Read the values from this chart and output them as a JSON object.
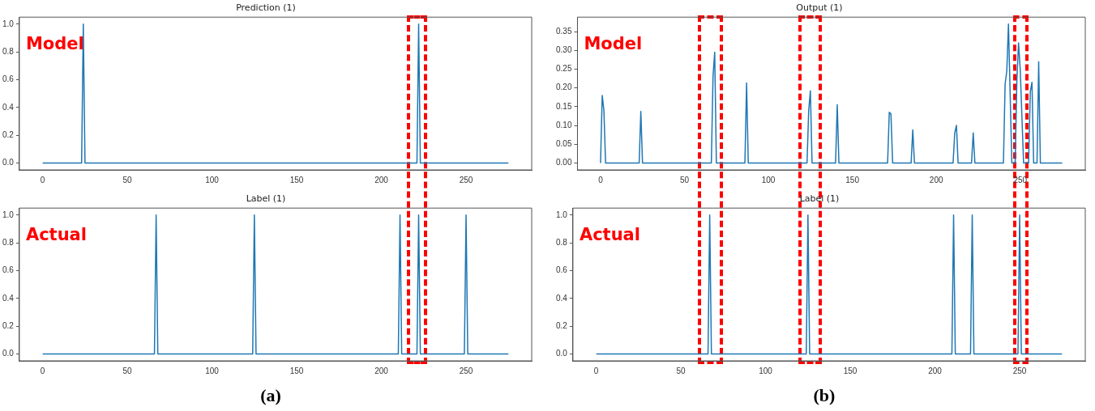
{
  "chart_data": [
    {
      "type": "line",
      "title": "Prediction (1)",
      "annotations": [
        "Model"
      ],
      "x": [
        0,
        23,
        24,
        25,
        221,
        222,
        223,
        275
      ],
      "series": [
        {
          "color": "#1f77b4",
          "values": [
            0,
            0,
            1,
            0,
            0,
            1,
            0,
            0
          ]
        }
      ],
      "xlim": [
        -13.75,
        288.75
      ],
      "xticks": [
        0,
        50,
        100,
        150,
        200,
        250
      ],
      "ylim": [
        -0.05,
        1.05
      ],
      "yticks": [
        {
          "value": 0,
          "label": "0.0"
        },
        {
          "value": 0.2,
          "label": "0.2"
        },
        {
          "value": 0.4,
          "label": "0.4"
        },
        {
          "value": 0.6,
          "label": "0.6"
        },
        {
          "value": 0.8,
          "label": "0.8"
        },
        {
          "value": 1,
          "label": "1.0"
        }
      ],
      "grid": false,
      "legend": false,
      "marker": "none"
    },
    {
      "type": "line",
      "title": "Label (1)",
      "annotations": [
        "Actual",
        "(a)"
      ],
      "x": [
        0,
        66,
        67,
        68,
        124,
        125,
        126,
        210,
        211,
        212,
        221,
        222,
        223,
        249,
        250,
        251,
        275
      ],
      "series": [
        {
          "color": "#1f77b4",
          "values": [
            0,
            0,
            1,
            0,
            0,
            1,
            0,
            0,
            1,
            0,
            0,
            1,
            0,
            0,
            1,
            0,
            0
          ]
        }
      ],
      "xlim": [
        -13.75,
        288.75
      ],
      "xticks": [
        0,
        50,
        100,
        150,
        200,
        250
      ],
      "ylim": [
        -0.05,
        1.05
      ],
      "yticks": [
        {
          "value": 0,
          "label": "0.0"
        },
        {
          "value": 0.2,
          "label": "0.2"
        },
        {
          "value": 0.4,
          "label": "0.4"
        },
        {
          "value": 0.6,
          "label": "0.6"
        },
        {
          "value": 0.8,
          "label": "0.8"
        },
        {
          "value": 1,
          "label": "1.0"
        }
      ],
      "grid": false,
      "legend": false,
      "marker": "none"
    },
    {
      "type": "line",
      "title": "Output (1)",
      "annotations": [
        "Model"
      ],
      "x": [
        0,
        1,
        2,
        3,
        23,
        24,
        25,
        66,
        67,
        68,
        69,
        86,
        87,
        88,
        123,
        124,
        125,
        126,
        140,
        141,
        142,
        171,
        172,
        173,
        174,
        185,
        186,
        187,
        210,
        211,
        212,
        213,
        221,
        222,
        223,
        240,
        241,
        242,
        243,
        245,
        247,
        248,
        249,
        250,
        252,
        255,
        256,
        257,
        258,
        260,
        261,
        262,
        275
      ],
      "series": [
        {
          "color": "#1f77b4",
          "values": [
            0,
            0.18,
            0.14,
            0,
            0,
            0.137,
            0,
            0,
            0.23,
            0.295,
            0,
            0,
            0.213,
            0,
            0,
            0.14,
            0.192,
            0,
            0,
            0.155,
            0,
            0,
            0.135,
            0.13,
            0,
            0,
            0.088,
            0,
            0,
            0.08,
            0.1,
            0,
            0,
            0.08,
            0,
            0,
            0.21,
            0.245,
            0.37,
            0,
            0,
            0.22,
            0.32,
            0.25,
            0,
            0,
            0.19,
            0.215,
            0,
            0,
            0.27,
            0,
            0
          ]
        }
      ],
      "xlim": [
        -13.75,
        288.75
      ],
      "xticks": [
        0,
        50,
        100,
        150,
        200,
        250
      ],
      "ylim": [
        -0.0185,
        0.3885
      ],
      "yticks": [
        {
          "value": 0,
          "label": "0.00"
        },
        {
          "value": 0.05,
          "label": "0.05"
        },
        {
          "value": 0.1,
          "label": "0.10"
        },
        {
          "value": 0.15,
          "label": "0.15"
        },
        {
          "value": 0.2,
          "label": "0.20"
        },
        {
          "value": 0.25,
          "label": "0.25"
        },
        {
          "value": 0.3,
          "label": "0.30"
        },
        {
          "value": 0.35,
          "label": "0.35"
        }
      ],
      "grid": false,
      "legend": false,
      "marker": "none"
    },
    {
      "type": "line",
      "title": "Label (1)",
      "annotations": [
        "Actual",
        "(b)"
      ],
      "x": [
        0,
        66,
        67,
        68,
        124,
        125,
        126,
        210,
        211,
        212,
        221,
        222,
        223,
        249,
        250,
        251,
        275
      ],
      "series": [
        {
          "color": "#1f77b4",
          "values": [
            0,
            0,
            1,
            0,
            0,
            1,
            0,
            0,
            1,
            0,
            0,
            1,
            0,
            0,
            1,
            0,
            0
          ]
        }
      ],
      "xlim": [
        -13.75,
        288.75
      ],
      "xticks": [
        0,
        50,
        100,
        150,
        200,
        250
      ],
      "ylim": [
        -0.05,
        1.05
      ],
      "yticks": [
        {
          "value": 0,
          "label": "0.0"
        },
        {
          "value": 0.2,
          "label": "0.2"
        },
        {
          "value": 0.4,
          "label": "0.4"
        },
        {
          "value": 0.6,
          "label": "0.6"
        },
        {
          "value": 0.8,
          "label": "0.8"
        },
        {
          "value": 1,
          "label": "1.0"
        }
      ],
      "grid": false,
      "legend": false,
      "marker": "none"
    }
  ]
}
